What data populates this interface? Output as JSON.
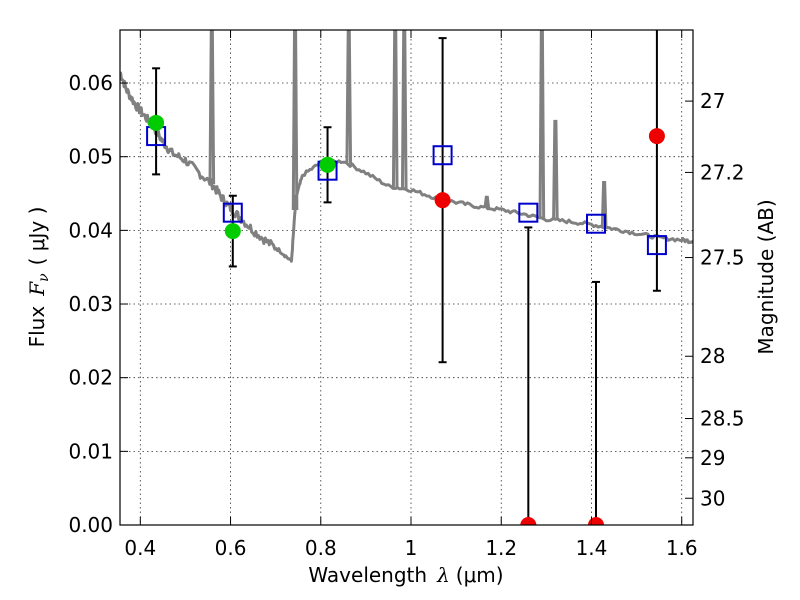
{
  "chart_data": {
    "type": "scatter",
    "title": "",
    "xlabel_text": "Wavelength",
    "xlabel_symbol": "λ",
    "xlabel_unit": "(μm)",
    "ylabel_text": "Flux",
    "ylabel_symbol_main": "F",
    "ylabel_symbol_sub": "ν",
    "ylabel_unit": "( μJy )",
    "y2label": "Magnitude (AB)",
    "xlim": [
      0.355,
      1.625
    ],
    "ylim": [
      0.0,
      0.0672
    ],
    "grid": true,
    "xticks": [
      0.4,
      0.6,
      0.8,
      1.0,
      1.2,
      1.4,
      1.6
    ],
    "xtick_labels": [
      "0.4",
      "0.6",
      "0.8",
      "1",
      "1.2",
      "1.4",
      "1.6"
    ],
    "yticks": [
      0.0,
      0.01,
      0.02,
      0.03,
      0.04,
      0.05,
      0.06
    ],
    "ytick_labels": [
      "0.00",
      "0.01",
      "0.02",
      "0.03",
      "0.04",
      "0.05",
      "0.06"
    ],
    "mag_ticks": [
      27,
      27.2,
      27.5,
      28,
      28.5,
      29,
      30
    ],
    "mag_tick_labels": [
      "27",
      "27.2",
      "27.5",
      "28",
      "28.5",
      "29",
      "30"
    ],
    "colors": {
      "sed": "#808080",
      "model_box": "#0000cc",
      "detection": "#00cc00",
      "low_sn": "#ee0000",
      "errorbar": "#000000"
    },
    "sed_continuum": [
      [
        0.355,
        0.0615
      ],
      [
        0.37,
        0.059
      ],
      [
        0.39,
        0.057
      ],
      [
        0.41,
        0.0555
      ],
      [
        0.43,
        0.054
      ],
      [
        0.45,
        0.052
      ],
      [
        0.47,
        0.0505
      ],
      [
        0.5,
        0.0495
      ],
      [
        0.53,
        0.0478
      ],
      [
        0.56,
        0.0462
      ],
      [
        0.58,
        0.0445
      ],
      [
        0.6,
        0.043
      ],
      [
        0.62,
        0.0418
      ],
      [
        0.65,
        0.04
      ],
      [
        0.68,
        0.0385
      ],
      [
        0.71,
        0.0372
      ],
      [
        0.735,
        0.0358
      ],
      [
        0.745,
        0.0445
      ],
      [
        0.76,
        0.0475
      ],
      [
        0.8,
        0.0492
      ],
      [
        0.85,
        0.0494
      ],
      [
        0.9,
        0.0478
      ],
      [
        0.95,
        0.046
      ],
      [
        1.0,
        0.0455
      ],
      [
        1.05,
        0.0445
      ],
      [
        1.1,
        0.0438
      ],
      [
        1.15,
        0.0432
      ],
      [
        1.2,
        0.0428
      ],
      [
        1.25,
        0.0422
      ],
      [
        1.3,
        0.0415
      ],
      [
        1.35,
        0.0412
      ],
      [
        1.4,
        0.0408
      ],
      [
        1.45,
        0.0402
      ],
      [
        1.5,
        0.0396
      ],
      [
        1.55,
        0.039
      ],
      [
        1.6,
        0.0387
      ],
      [
        1.625,
        0.0385
      ]
    ],
    "sed_emission_lines": [
      {
        "x": 0.5585,
        "peak": 0.0672
      },
      {
        "x": 0.743,
        "peak": 0.0672
      },
      {
        "x": 0.862,
        "peak": 0.0672
      },
      {
        "x": 0.965,
        "peak": 0.0672
      },
      {
        "x": 0.985,
        "peak": 0.0672
      },
      {
        "x": 1.168,
        "peak": 0.0445
      },
      {
        "x": 1.29,
        "peak": 0.0672
      },
      {
        "x": 1.32,
        "peak": 0.0548
      },
      {
        "x": 1.428,
        "peak": 0.0465
      }
    ],
    "model_boxes": [
      {
        "x": 0.435,
        "y": 0.0528
      },
      {
        "x": 0.605,
        "y": 0.0424
      },
      {
        "x": 0.815,
        "y": 0.0481
      },
      {
        "x": 1.07,
        "y": 0.0502
      },
      {
        "x": 1.26,
        "y": 0.0424
      },
      {
        "x": 1.41,
        "y": 0.0409
      },
      {
        "x": 1.545,
        "y": 0.038
      }
    ],
    "observed_points": [
      {
        "x": 0.435,
        "y": 0.0546,
        "err_low": 0.007,
        "err_high": 0.0074,
        "status": "detection"
      },
      {
        "x": 0.605,
        "y": 0.0399,
        "err_low": 0.0048,
        "err_high": 0.0048,
        "status": "detection"
      },
      {
        "x": 0.815,
        "y": 0.0489,
        "err_low": 0.0051,
        "err_high": 0.0051,
        "status": "detection"
      },
      {
        "x": 1.07,
        "y": 0.0441,
        "err_low": 0.022,
        "err_high": 0.022,
        "status": "low_sn"
      },
      {
        "x": 1.26,
        "y": 0.0,
        "err_low": 0.0,
        "err_high": 0.0404,
        "status": "low_sn"
      },
      {
        "x": 1.41,
        "y": 0.0,
        "err_low": 0.0,
        "err_high": 0.033,
        "status": "low_sn"
      },
      {
        "x": 1.545,
        "y": 0.0528,
        "err_low": 0.021,
        "err_high": 0.015,
        "status": "low_sn"
      }
    ]
  }
}
